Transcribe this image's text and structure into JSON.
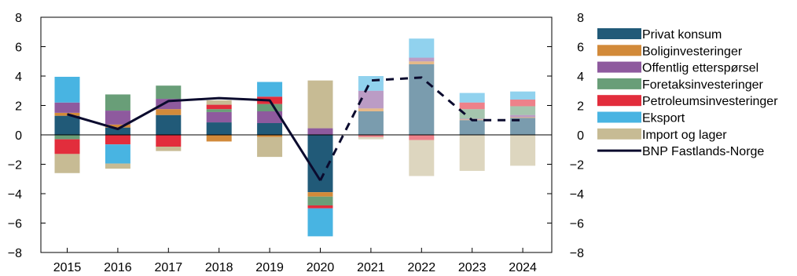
{
  "chart_data": {
    "type": "bar",
    "stacked": true,
    "categories": [
      "2015",
      "2016",
      "2017",
      "2018",
      "2019",
      "2020",
      "2021",
      "2022",
      "2023",
      "2024"
    ],
    "projection_from": "2021",
    "ylim": [
      -8,
      8
    ],
    "yticks": [
      "8",
      "6",
      "4",
      "2",
      "0",
      "−2",
      "−4",
      "−6",
      "−8"
    ],
    "yticks_right": [
      "8",
      "6",
      "4",
      "2",
      "0",
      "−2",
      "−4",
      "−6",
      "−8"
    ],
    "grid": false,
    "legend_position": "right",
    "series": [
      {
        "name": "Privat konsum",
        "color": "#215a78",
        "values": [
          1.3,
          0.5,
          1.35,
          0.85,
          0.8,
          -3.9,
          1.6,
          4.8,
          1.0,
          1.15
        ]
      },
      {
        "name": "Boliginvesteringer",
        "color": "#d28a3a",
        "values": [
          0.2,
          0.2,
          0.4,
          -0.45,
          -0.15,
          -0.3,
          0.2,
          0.2,
          0.05,
          0.05
        ]
      },
      {
        "name": "Offentlig etterspørsel",
        "color": "#8e5a9e",
        "values": [
          0.7,
          0.95,
          0.7,
          0.7,
          0.8,
          0.45,
          1.2,
          0.25,
          0.05,
          0.15
        ]
      },
      {
        "name": "Foretaksinvesteringer",
        "color": "#699e78",
        "values": [
          -0.3,
          1.1,
          0.9,
          0.2,
          0.5,
          -0.6,
          0.0,
          0.0,
          0.65,
          0.6
        ]
      },
      {
        "name": "Petroleumsinvesteringer",
        "color": "#e22d3c",
        "values": [
          -1.0,
          -0.65,
          -0.8,
          0.3,
          0.5,
          -0.2,
          -0.15,
          -0.35,
          0.45,
          0.45
        ]
      },
      {
        "name": "Eksport",
        "color": "#48b4e2",
        "values": [
          1.75,
          -1.3,
          0.0,
          0.0,
          1.0,
          -1.9,
          1.0,
          1.3,
          0.65,
          0.55
        ]
      },
      {
        "name": "Import og lager",
        "color": "#c7bb94",
        "values": [
          -1.3,
          -0.35,
          -0.3,
          0.3,
          -1.35,
          3.25,
          -0.15,
          -2.45,
          -2.45,
          -2.1
        ]
      }
    ],
    "line": {
      "name": "BNP Fastlands-Norge",
      "color": "#0b0b2e",
      "values": [
        1.4,
        0.4,
        2.3,
        2.5,
        2.35,
        -3.1,
        3.7,
        3.9,
        1.0,
        1.0
      ]
    }
  }
}
